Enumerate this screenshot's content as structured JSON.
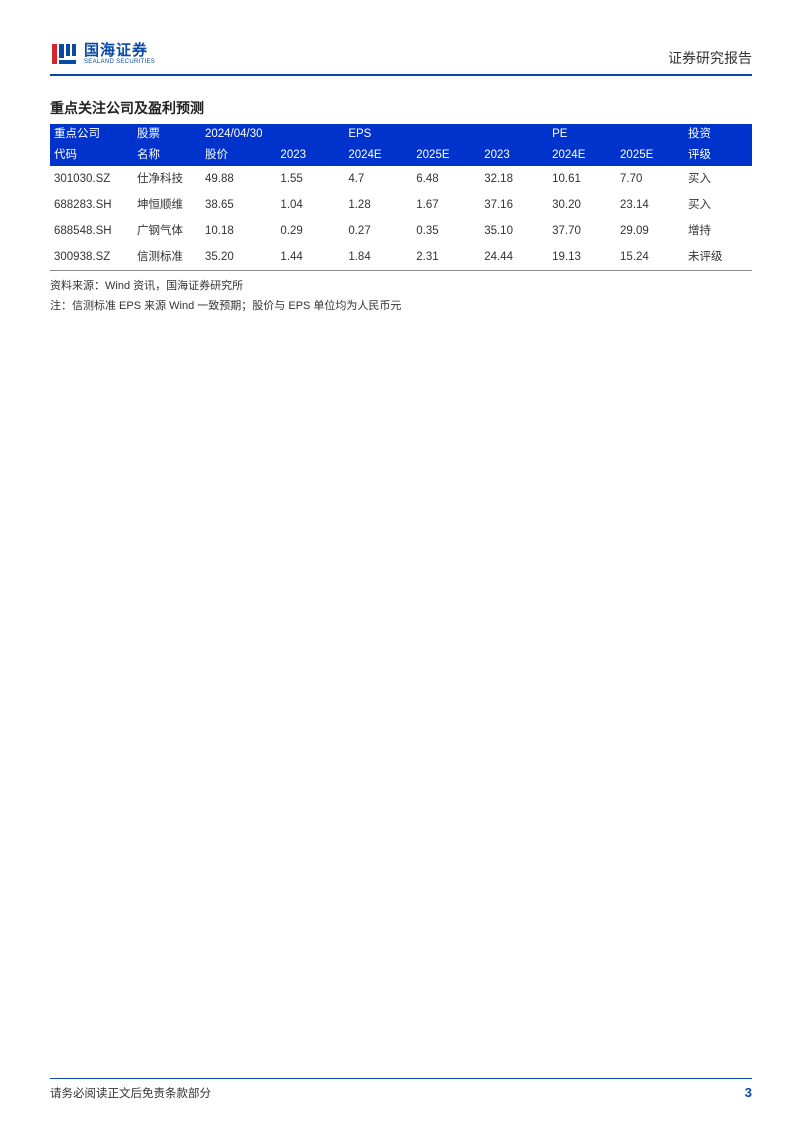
{
  "header": {
    "logo_cn": "国海证券",
    "logo_en": "SEALAND SECURITIES",
    "doc_type": "证券研究报告",
    "logo_colors": {
      "red": "#d7252c",
      "blue": "#0a4aa6"
    }
  },
  "section": {
    "title": "重点关注公司及盈利预测"
  },
  "table": {
    "header_bg": "#0033cc",
    "header_color": "#ffffff",
    "columns_row1": [
      "重点公司",
      "股票",
      "2024/04/30",
      "",
      "EPS",
      "",
      "",
      "PE",
      "",
      "投资"
    ],
    "columns_row2": [
      "代码",
      "名称",
      "股价",
      "2023",
      "2024E",
      "2025E",
      "2023",
      "2024E",
      "2025E",
      "评级"
    ],
    "rows": [
      [
        "301030.SZ",
        "仕净科技",
        "49.88",
        "1.55",
        "4.7",
        "6.48",
        "32.18",
        "10.61",
        "7.70",
        "买入"
      ],
      [
        "688283.SH",
        "坤恒顺维",
        "38.65",
        "1.04",
        "1.28",
        "1.67",
        "37.16",
        "30.20",
        "23.14",
        "买入"
      ],
      [
        "688548.SH",
        "广钢气体",
        "10.18",
        "0.29",
        "0.27",
        "0.35",
        "35.10",
        "37.70",
        "29.09",
        "增持"
      ],
      [
        "300938.SZ",
        "信测标准",
        "35.20",
        "1.44",
        "1.84",
        "2.31",
        "24.44",
        "19.13",
        "15.24",
        "未评级"
      ]
    ]
  },
  "notes": {
    "source": "资料来源：Wind 资讯，国海证券研究所",
    "note": "注：信测标准 EPS 来源 Wind 一致预期；股价与 EPS 单位均为人民币元"
  },
  "footer": {
    "disclaimer": "请务必阅读正文后免责条款部分",
    "page_number": "3"
  }
}
